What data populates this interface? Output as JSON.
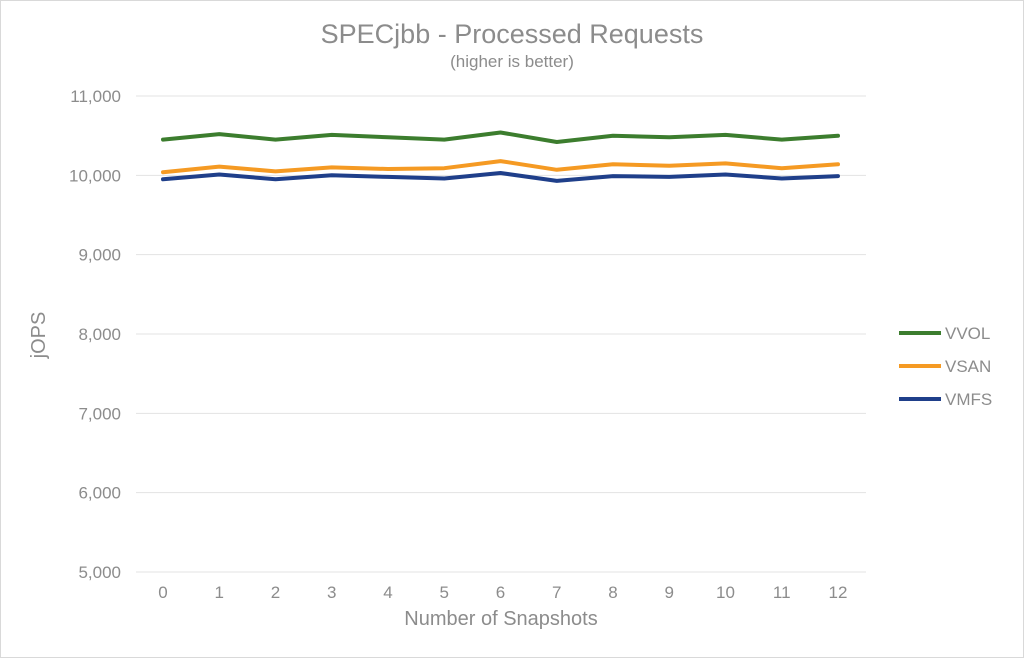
{
  "chart_data": {
    "type": "line",
    "title": "SPECjbb - Processed Requests",
    "subtitle": "(higher is better)",
    "xlabel": "Number of Snapshots",
    "ylabel": "jOPS",
    "x": [
      0,
      1,
      2,
      3,
      4,
      5,
      6,
      7,
      8,
      9,
      10,
      11,
      12
    ],
    "x_tick_labels": [
      "0",
      "1",
      "2",
      "3",
      "4",
      "5",
      "6",
      "7",
      "8",
      "9",
      "10",
      "11",
      "12"
    ],
    "ylim": [
      5000,
      11000
    ],
    "y_ticks": [
      5000,
      6000,
      7000,
      8000,
      9000,
      10000,
      11000
    ],
    "y_tick_labels": [
      "5,000",
      "6,000",
      "7,000",
      "8,000",
      "9,000",
      "10,000",
      "11,000"
    ],
    "grid": true,
    "legend_position": "right",
    "series": [
      {
        "name": "VVOL",
        "color": "#3c7d2e",
        "values": [
          10450,
          10520,
          10450,
          10510,
          10480,
          10450,
          10540,
          10420,
          10500,
          10480,
          10510,
          10450,
          10500
        ]
      },
      {
        "name": "VSAN",
        "color": "#f59a23",
        "values": [
          10040,
          10110,
          10050,
          10100,
          10080,
          10090,
          10180,
          10070,
          10140,
          10120,
          10150,
          10090,
          10140
        ]
      },
      {
        "name": "VMFS",
        "color": "#1f3f8a",
        "values": [
          9950,
          10010,
          9950,
          10000,
          9980,
          9960,
          10030,
          9930,
          9990,
          9980,
          10010,
          9960,
          9990
        ]
      }
    ]
  }
}
